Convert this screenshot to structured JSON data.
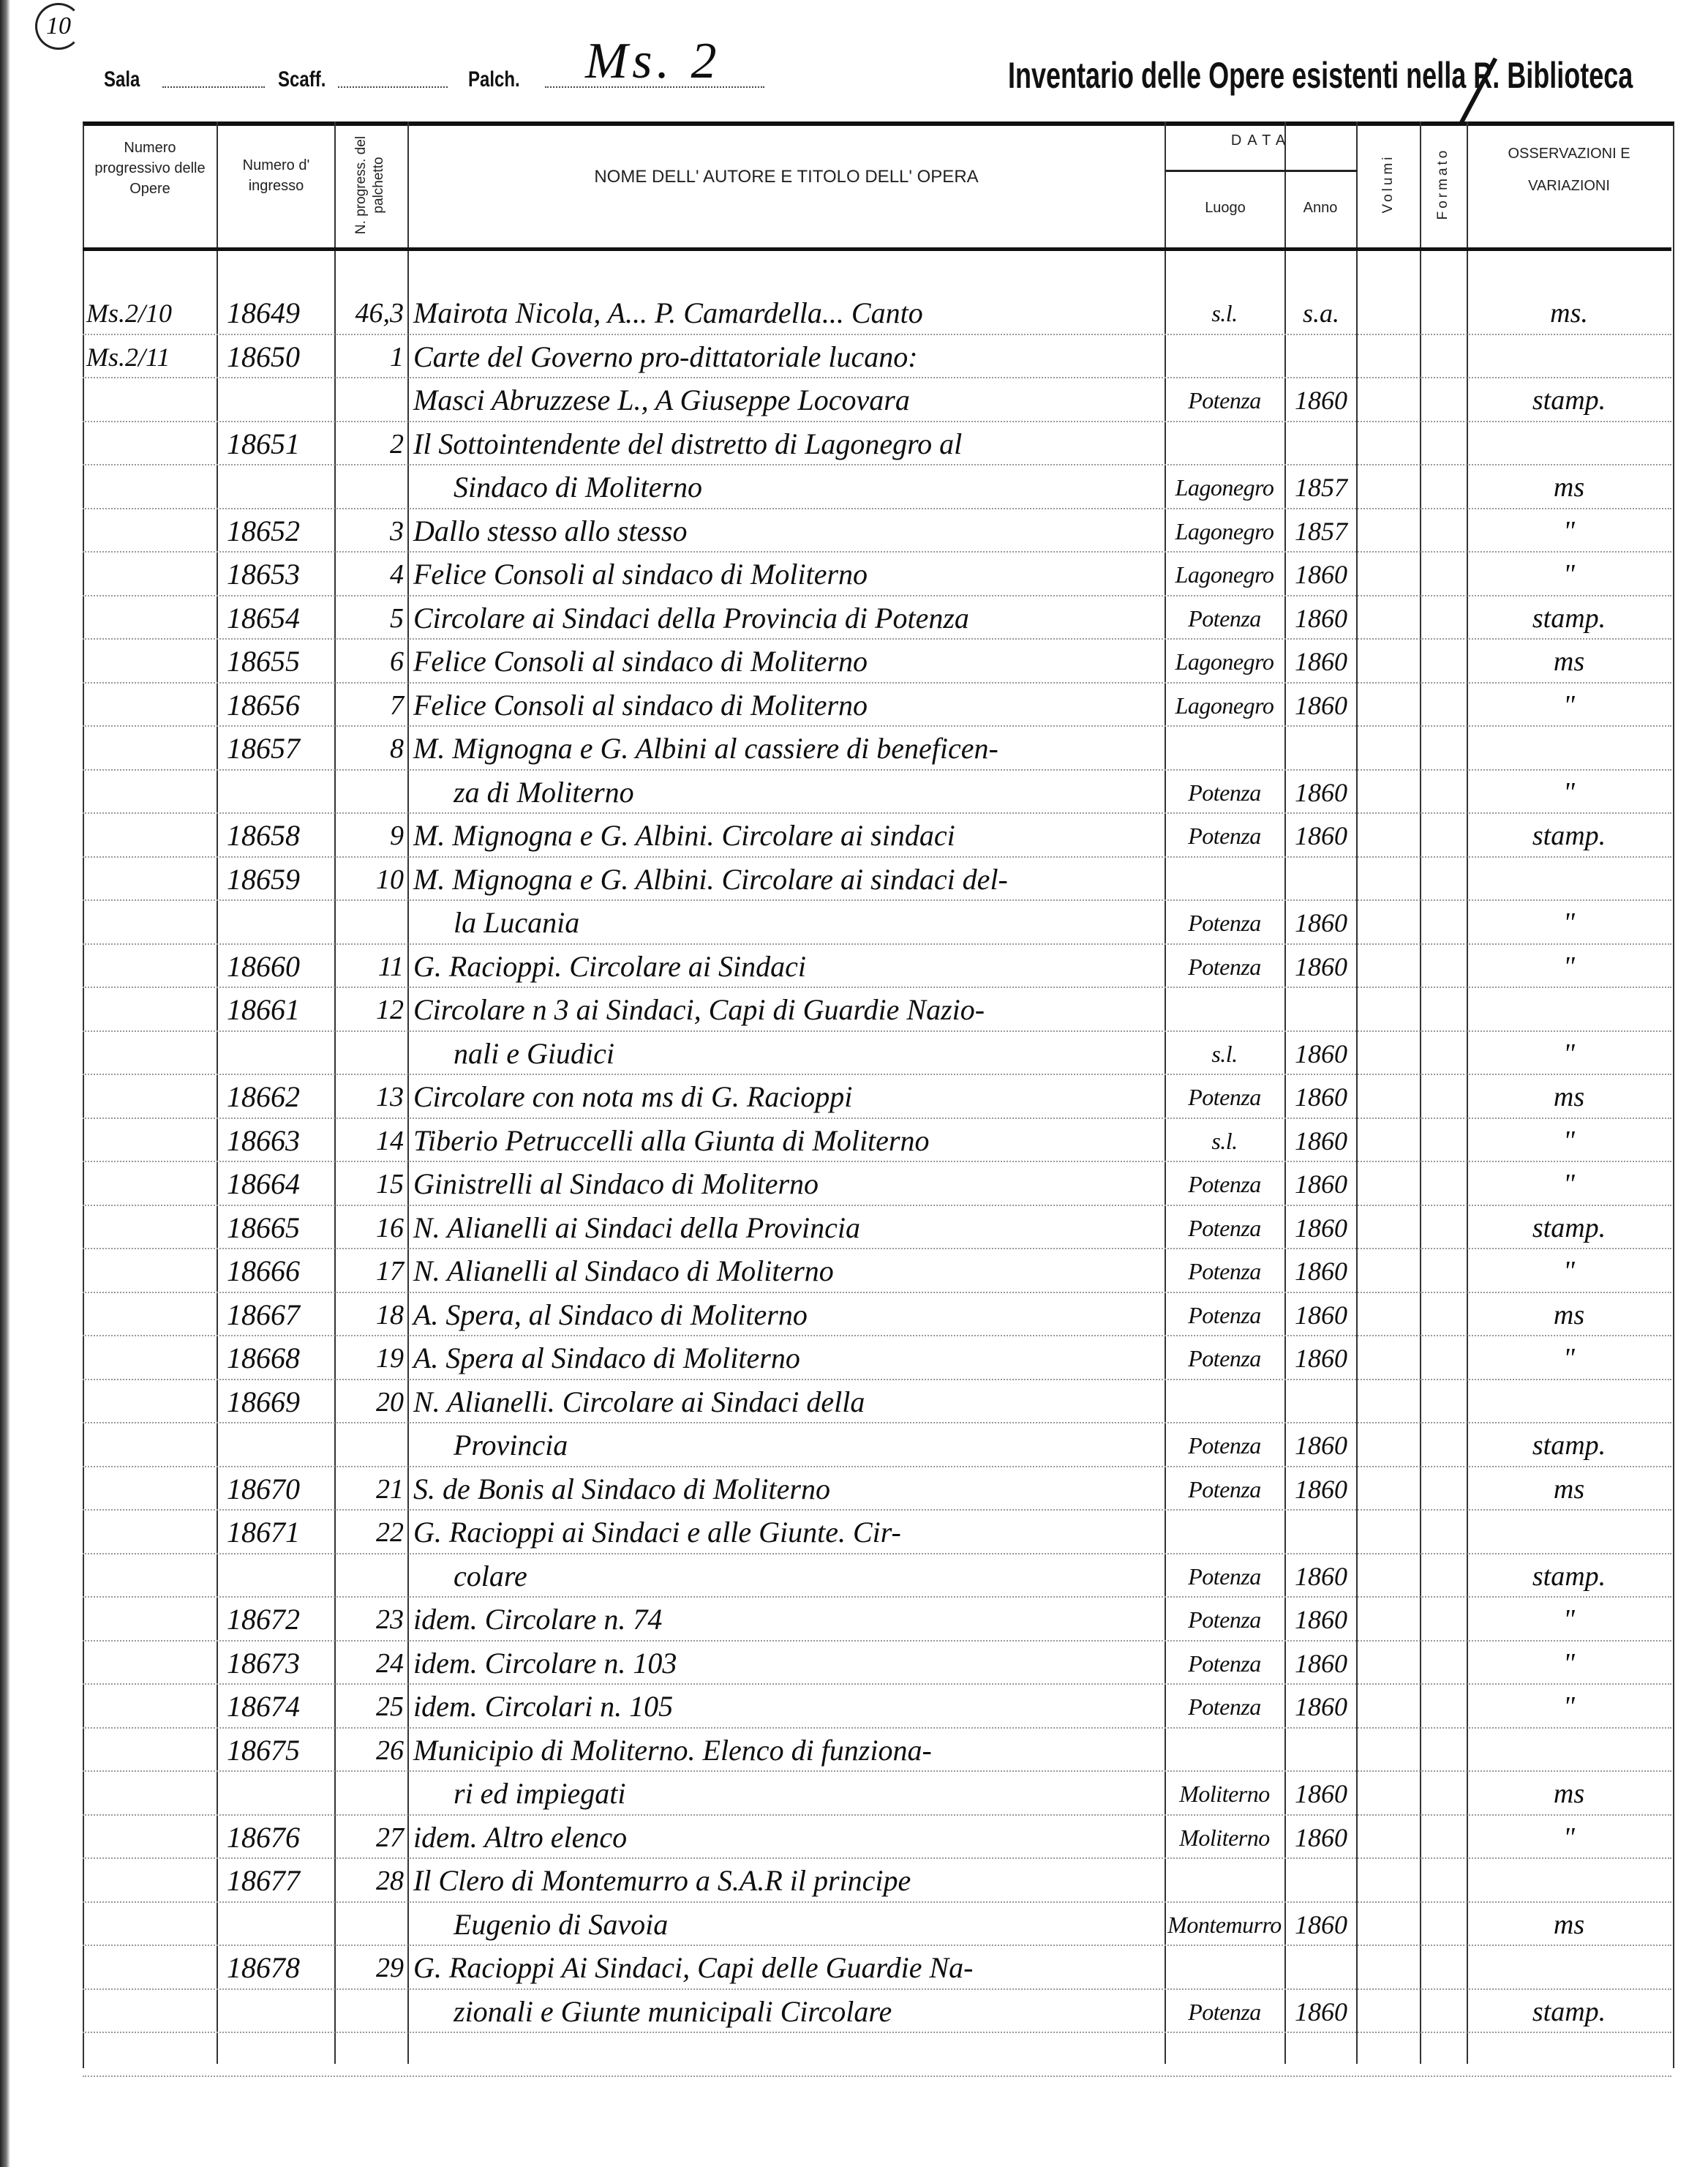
{
  "page_number": "10",
  "header": {
    "sala_label": "Sala",
    "scaff_label": "Scaff.",
    "palch_label": "Palch.",
    "shelfmark": "Ms. 2",
    "title": "Inventario delle Opere esistenti nella R. Biblioteca"
  },
  "columns": {
    "numero_progressivo": "Numero progressivo delle Opere",
    "numero_ingresso": "Numero d' ingresso",
    "n_progress_palchetto": "N. progress. del palchetto",
    "nome_autore_titolo": "NOME DELL' AUTORE E TITOLO DELL' OPERA",
    "data": "DATA",
    "luogo": "Luogo",
    "anno": "Anno",
    "volumi": "Volumi",
    "formato": "Formato",
    "osservazioni": "OSSERVAZIONI E VARIAZIONI"
  },
  "lines": [
    {
      "seg": "Ms.2/10",
      "ing": "18649",
      "np": "46,3",
      "name": "Mairota Nicola, A... P. Camardella... Canto",
      "luogo": "s.l.",
      "anno": "s.a.",
      "oss": "ms."
    },
    {
      "seg": "Ms.2/11",
      "ing": "18650",
      "np": "1",
      "name": "Carte del Governo pro-dittatoriale lucano:"
    },
    {
      "name": "Masci Abruzzese L., A Giuseppe Locovara",
      "luogo": "Potenza",
      "anno": "1860",
      "oss": "stamp."
    },
    {
      "ing": "18651",
      "np": "2",
      "name": "Il Sottointendente del distretto di Lagonegro al"
    },
    {
      "name": "Sindaco di Moliterno",
      "cont": true,
      "luogo": "Lagonegro",
      "anno": "1857",
      "oss": "ms"
    },
    {
      "ing": "18652",
      "np": "3",
      "name": "Dallo stesso allo stesso",
      "luogo": "Lagonegro",
      "anno": "1857",
      "oss": "\""
    },
    {
      "ing": "18653",
      "np": "4",
      "name": "Felice Consoli al sindaco di Moliterno",
      "luogo": "Lagonegro",
      "anno": "1860",
      "oss": "\""
    },
    {
      "ing": "18654",
      "np": "5",
      "name": "Circolare ai Sindaci della Provincia di Potenza",
      "luogo": "Potenza",
      "anno": "1860",
      "oss": "stamp."
    },
    {
      "ing": "18655",
      "np": "6",
      "name": "Felice Consoli al sindaco di Moliterno",
      "luogo": "Lagonegro",
      "anno": "1860",
      "oss": "ms"
    },
    {
      "ing": "18656",
      "np": "7",
      "name": "Felice Consoli al sindaco di Moliterno",
      "luogo": "Lagonegro",
      "anno": "1860",
      "oss": "\""
    },
    {
      "ing": "18657",
      "np": "8",
      "name": "M. Mignogna e G. Albini al cassiere di beneficen-"
    },
    {
      "name": "za di Moliterno",
      "cont": true,
      "luogo": "Potenza",
      "anno": "1860",
      "oss": "\""
    },
    {
      "ing": "18658",
      "np": "9",
      "name": "M. Mignogna e G. Albini. Circolare ai sindaci",
      "luogo": "Potenza",
      "anno": "1860",
      "oss": "stamp."
    },
    {
      "ing": "18659",
      "np": "10",
      "name": "M. Mignogna e G. Albini. Circolare ai sindaci del-"
    },
    {
      "name": "la Lucania",
      "cont": true,
      "luogo": "Potenza",
      "anno": "1860",
      "oss": "\""
    },
    {
      "ing": "18660",
      "np": "11",
      "name": "G. Racioppi. Circolare ai Sindaci",
      "luogo": "Potenza",
      "anno": "1860",
      "oss": "\""
    },
    {
      "ing": "18661",
      "np": "12",
      "name": "Circolare n 3 ai Sindaci, Capi di Guardie Nazio-"
    },
    {
      "name": "nali e Giudici",
      "cont": true,
      "luogo": "s.l.",
      "anno": "1860",
      "oss": "\""
    },
    {
      "ing": "18662",
      "np": "13",
      "name": "Circolare con nota ms di G. Racioppi",
      "luogo": "Potenza",
      "anno": "1860",
      "oss": "ms"
    },
    {
      "ing": "18663",
      "np": "14",
      "name": "Tiberio Petruccelli alla Giunta di Moliterno",
      "luogo": "s.l.",
      "anno": "1860",
      "oss": "\""
    },
    {
      "ing": "18664",
      "np": "15",
      "name": "Ginistrelli al Sindaco di Moliterno",
      "luogo": "Potenza",
      "anno": "1860",
      "oss": "\""
    },
    {
      "ing": "18665",
      "np": "16",
      "name": "N. Alianelli ai Sindaci della Provincia",
      "luogo": "Potenza",
      "anno": "1860",
      "oss": "stamp."
    },
    {
      "ing": "18666",
      "np": "17",
      "name": "N. Alianelli al Sindaco di Moliterno",
      "luogo": "Potenza",
      "anno": "1860",
      "oss": "\""
    },
    {
      "ing": "18667",
      "np": "18",
      "name": "A. Spera, al Sindaco di Moliterno",
      "luogo": "Potenza",
      "anno": "1860",
      "oss": "ms"
    },
    {
      "ing": "18668",
      "np": "19",
      "name": "A. Spera al Sindaco di Moliterno",
      "luogo": "Potenza",
      "anno": "1860",
      "oss": "\""
    },
    {
      "ing": "18669",
      "np": "20",
      "name": "N. Alianelli. Circolare ai Sindaci della"
    },
    {
      "name": "Provincia",
      "cont": true,
      "luogo": "Potenza",
      "anno": "1860",
      "oss": "stamp."
    },
    {
      "ing": "18670",
      "np": "21",
      "name": "S. de Bonis al Sindaco di Moliterno",
      "luogo": "Potenza",
      "anno": "1860",
      "oss": "ms"
    },
    {
      "ing": "18671",
      "np": "22",
      "name": "G. Racioppi ai Sindaci e alle Giunte. Cir-"
    },
    {
      "name": "colare",
      "cont": true,
      "luogo": "Potenza",
      "anno": "1860",
      "oss": "stamp."
    },
    {
      "ing": "18672",
      "np": "23",
      "name": "idem. Circolare n. 74",
      "luogo": "Potenza",
      "anno": "1860",
      "oss": "\""
    },
    {
      "ing": "18673",
      "np": "24",
      "name": "idem. Circolare n. 103",
      "luogo": "Potenza",
      "anno": "1860",
      "oss": "\""
    },
    {
      "ing": "18674",
      "np": "25",
      "name": "idem. Circolari n. 105",
      "luogo": "Potenza",
      "anno": "1860",
      "oss": "\""
    },
    {
      "ing": "18675",
      "np": "26",
      "name": "Municipio di Moliterno. Elenco di funziona-"
    },
    {
      "name": "ri ed impiegati",
      "cont": true,
      "luogo": "Moliterno",
      "anno": "1860",
      "oss": "ms"
    },
    {
      "ing": "18676",
      "np": "27",
      "name": "idem. Altro elenco",
      "luogo": "Moliterno",
      "anno": "1860",
      "oss": "\""
    },
    {
      "ing": "18677",
      "np": "28",
      "name": "Il Clero di Montemurro a S.A.R il principe"
    },
    {
      "name": "Eugenio di Savoia",
      "cont": true,
      "luogo": "Montemurro",
      "anno": "1860",
      "oss": "ms"
    },
    {
      "ing": "18678",
      "np": "29",
      "name": "G. Racioppi Ai Sindaci, Capi delle Guardie Na-"
    },
    {
      "name": "zionali e Giunte municipali Circolare",
      "cont": true,
      "luogo": "Potenza",
      "anno": "1860",
      "oss": "stamp."
    }
  ]
}
